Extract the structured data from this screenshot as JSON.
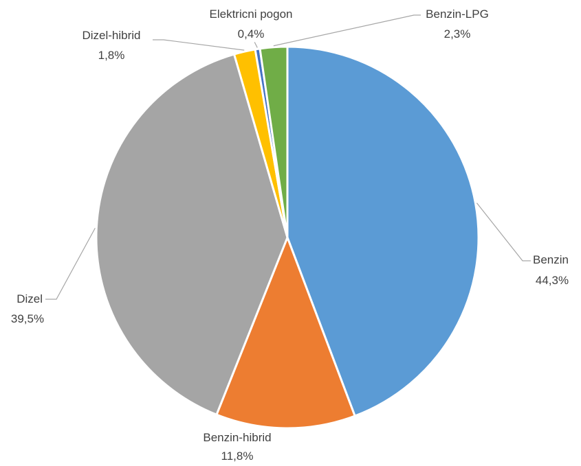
{
  "chart_data": {
    "type": "pie",
    "title": "",
    "slices": [
      {
        "label": "Benzin",
        "value": 44.3,
        "value_label": "44,3%",
        "color": "#5b9bd5"
      },
      {
        "label": "Benzin-hibrid",
        "value": 11.8,
        "value_label": "11,8%",
        "color": "#ed7d31"
      },
      {
        "label": "Dizel",
        "value": 39.5,
        "value_label": "39,5%",
        "color": "#a5a5a5"
      },
      {
        "label": "Dizel-hibrid",
        "value": 1.8,
        "value_label": "1,8%",
        "color": "#ffc000"
      },
      {
        "label": "Elektricni pogon",
        "value": 0.4,
        "value_label": "0,4%",
        "color": "#4472c4"
      },
      {
        "label": "Benzin-LPG",
        "value": 2.3,
        "value_label": "2,3%",
        "color": "#70ad47"
      }
    ]
  }
}
